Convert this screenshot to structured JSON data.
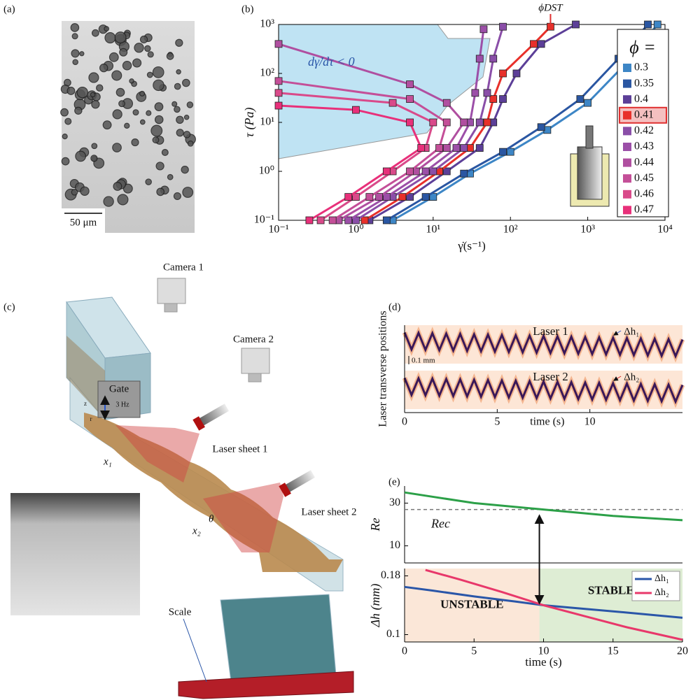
{
  "panel_labels": [
    "(a)",
    "(b)",
    "(c)",
    "(d)",
    "(e)"
  ],
  "photo": {
    "scale_bar": "50 μm"
  },
  "diagram": {
    "camera_1": "Camera 1",
    "camera_2": "Camera 2",
    "gate": "Gate",
    "frequency": "3 Hz",
    "laser_sheet_1": "Laser sheet 1",
    "laser_sheet_2": "Laser sheet 2",
    "x1": "x₁",
    "x2": "x₂",
    "theta": "θ",
    "scale": "Scale",
    "z": "z",
    "r": "r"
  },
  "chart_data": [
    {
      "type": "line",
      "xlog": true,
      "ylog": true,
      "markers": true,
      "xlabel": "γ̇(s⁻¹)",
      "ylabel": "τ (Pa)",
      "xlim": [
        0.1,
        10000
      ],
      "ylim": [
        0.1,
        1000
      ],
      "xticks": [
        {
          "value": 0.1,
          "label": "10⁻¹"
        },
        {
          "value": 1,
          "label": "10⁰"
        },
        {
          "value": 10,
          "label": "10¹"
        },
        {
          "value": 100,
          "label": "10²"
        },
        {
          "value": 1000,
          "label": "10³"
        },
        {
          "value": 10000,
          "label": "10⁴"
        }
      ],
      "yticks": [
        {
          "value": 0.1,
          "label": "10⁻¹"
        },
        {
          "value": 1,
          "label": "10⁰"
        },
        {
          "value": 10,
          "label": "10¹"
        },
        {
          "value": 100,
          "label": "10²"
        },
        {
          "value": 1000,
          "label": "10³"
        }
      ],
      "legend": "right",
      "legend_title": "ϕ =",
      "highlight_series": 3,
      "annotations": [
        "ϕDST",
        "dγ̇/dτ < 0"
      ],
      "series": [
        {
          "name": "0.3",
          "color": "#3d86c6",
          "x": [
            3,
            10,
            30,
            100,
            300,
            1000,
            3000,
            8000
          ],
          "y": [
            0.1,
            0.3,
            0.9,
            2.5,
            7,
            25,
            150,
            1000
          ]
        },
        {
          "name": "0.35",
          "color": "#2a56a2",
          "x": [
            2.5,
            8,
            25,
            80,
            250,
            800,
            2500,
            6000
          ],
          "y": [
            0.1,
            0.3,
            0.9,
            2.5,
            8,
            30,
            200,
            1000
          ]
        },
        {
          "name": "0.4",
          "color": "#5c3f98",
          "x": [
            1.5,
            5,
            15,
            40,
            60,
            80,
            120,
            250,
            700
          ],
          "y": [
            0.1,
            0.3,
            1,
            3,
            10,
            30,
            100,
            400,
            1000
          ]
        },
        {
          "name": "0.41",
          "color": "#e8302a",
          "x": [
            1.3,
            4,
            12,
            30,
            50,
            60,
            80,
            200,
            330
          ],
          "y": [
            0.1,
            0.3,
            1,
            3,
            10,
            30,
            100,
            400,
            900
          ]
        },
        {
          "name": "0.42",
          "color": "#8a4ea8",
          "x": [
            1,
            3,
            10,
            25,
            40,
            50,
            60,
            80
          ],
          "y": [
            0.1,
            0.3,
            1,
            3,
            10,
            40,
            200,
            900
          ]
        },
        {
          "name": "0.43",
          "color": "#9c4fa8",
          "x": [
            0.8,
            2.5,
            8,
            20,
            30,
            35,
            40,
            45
          ],
          "y": [
            0.1,
            0.3,
            1,
            3,
            10,
            40,
            200,
            800
          ]
        },
        {
          "name": "0.44",
          "color": "#b04fa0",
          "x": [
            0.6,
            2,
            6,
            15,
            25,
            15,
            5,
            0.1
          ],
          "y": [
            0.1,
            0.3,
            1,
            3,
            10,
            25,
            60,
            400
          ]
        },
        {
          "name": "0.45",
          "color": "#c44f98",
          "x": [
            0.5,
            1.5,
            5,
            12,
            15,
            5,
            0.1
          ],
          "y": [
            0.1,
            0.3,
            1,
            3,
            10,
            30,
            70
          ]
        },
        {
          "name": "0.46",
          "color": "#d94a8a",
          "x": [
            0.35,
            1,
            3,
            8,
            10,
            3,
            0.1
          ],
          "y": [
            0.1,
            0.3,
            1,
            3,
            10,
            25,
            40
          ]
        },
        {
          "name": "0.47",
          "color": "#e8307a",
          "x": [
            0.25,
            0.8,
            2.5,
            7,
            5,
            1,
            0.1
          ],
          "y": [
            0.1,
            0.3,
            1,
            3,
            10,
            18,
            22
          ]
        }
      ]
    },
    {
      "type": "kymograph",
      "xlim": [
        0,
        15
      ],
      "xticks": [
        0,
        5,
        10
      ],
      "xlabel": "time (s)",
      "ylabel": "Laser transverse positions",
      "strips": [
        "Laser 1",
        "Laser 2"
      ],
      "annotations": [
        "Δh₁",
        "Δh₂"
      ],
      "scale_bar": "0.1 mm"
    },
    {
      "type": "line",
      "xlim": [
        0,
        20
      ],
      "ylim": [
        2,
        38
      ],
      "yticks": [
        10,
        30
      ],
      "ylabel": "Re",
      "ref_line": 27,
      "ref_label": "Rec",
      "series": [
        {
          "color": "#2ca048",
          "x": [
            0,
            2,
            5,
            10,
            15,
            20
          ],
          "y": [
            35,
            33,
            30,
            27,
            24,
            22
          ]
        }
      ]
    },
    {
      "type": "line",
      "xlim": [
        0,
        20
      ],
      "xticks": [
        0,
        5,
        10,
        15,
        20
      ],
      "ylim": [
        0.09,
        0.19
      ],
      "yticks": [
        0.1,
        0.18
      ],
      "xlabel": "time (s)",
      "ylabel": "Δh (mm)",
      "legend": "upper right",
      "regions": [
        {
          "label": "UNSTABLE",
          "from": 0,
          "to": 9.7,
          "color": "#fbe7d8"
        },
        {
          "label": "STABLE",
          "from": 9.7,
          "to": 20,
          "color": "#deedd4"
        }
      ],
      "series": [
        {
          "name": "Δh₁",
          "color": "#2a56a8",
          "x": [
            0,
            2,
            5,
            8,
            10,
            13,
            16,
            20
          ],
          "y": [
            0.165,
            0.16,
            0.152,
            0.145,
            0.14,
            0.135,
            0.13,
            0.123
          ]
        },
        {
          "name": "Δh₂",
          "color": "#e8386a",
          "x": [
            1.5,
            4,
            7,
            10,
            13,
            16,
            20
          ],
          "y": [
            0.188,
            0.175,
            0.158,
            0.14,
            0.125,
            0.11,
            0.093
          ]
        }
      ]
    }
  ]
}
